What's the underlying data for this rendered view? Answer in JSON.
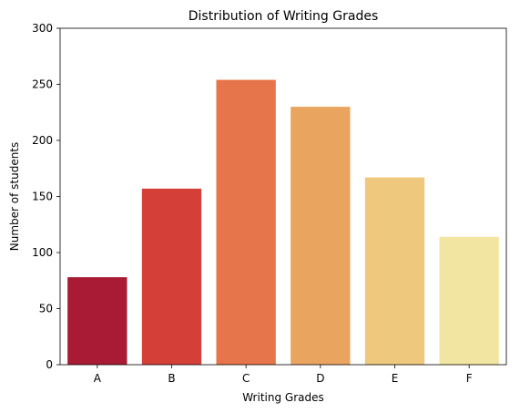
{
  "chart_data": {
    "type": "bar",
    "title": "Distribution of Writing Grades",
    "xlabel": "Writing Grades",
    "ylabel": "Number of students",
    "categories": [
      "A",
      "B",
      "C",
      "D",
      "E",
      "F"
    ],
    "values": [
      78,
      157,
      254,
      230,
      167,
      114
    ],
    "colors": [
      "#a91b34",
      "#d43f37",
      "#e7754b",
      "#e9a55f",
      "#eec87d",
      "#f2e4a1"
    ],
    "ylim": [
      0,
      300
    ],
    "yticks": [
      0,
      50,
      100,
      150,
      200,
      250,
      300
    ],
    "grid": false,
    "legend": "none"
  }
}
